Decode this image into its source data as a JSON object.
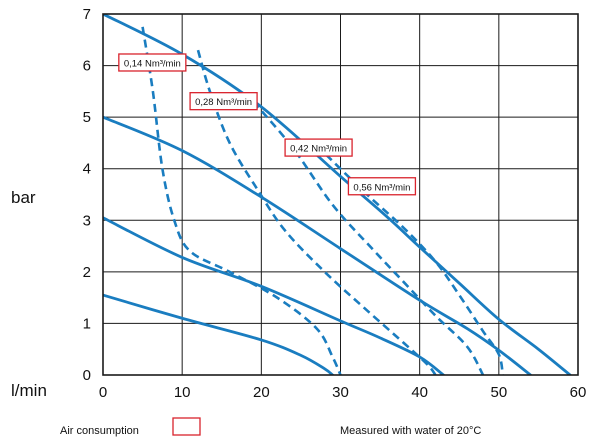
{
  "chart_data": {
    "type": "line",
    "title": "",
    "xlabel": "l/min",
    "ylabel": "bar",
    "xlim": [
      0,
      60
    ],
    "ylim": [
      0,
      7
    ],
    "x_ticks": [
      0,
      10,
      20,
      30,
      40,
      50,
      60
    ],
    "y_ticks": [
      0,
      1,
      2,
      3,
      4,
      5,
      6,
      7
    ],
    "grid": true,
    "line_color": "#1a7dc0",
    "grid_color": "#1a1a1a",
    "callout_border_color": "#d9232d",
    "pressure_curves": [
      {
        "style": "solid",
        "points": [
          [
            0,
            7.0
          ],
          [
            10,
            6.22
          ],
          [
            20,
            5.2
          ],
          [
            30,
            3.85
          ],
          [
            36,
            3.05
          ],
          [
            40,
            2.48
          ],
          [
            45,
            1.78
          ],
          [
            50,
            1.08
          ],
          [
            55,
            0.5
          ],
          [
            59,
            0.0
          ]
        ]
      },
      {
        "style": "solid",
        "points": [
          [
            0,
            5.0
          ],
          [
            10,
            4.35
          ],
          [
            20,
            3.45
          ],
          [
            30,
            2.45
          ],
          [
            40,
            1.45
          ],
          [
            46,
            0.9
          ],
          [
            50,
            0.48
          ],
          [
            54,
            0.0
          ]
        ]
      },
      {
        "style": "solid",
        "points": [
          [
            0,
            3.05
          ],
          [
            10,
            2.28
          ],
          [
            20,
            1.72
          ],
          [
            30,
            1.05
          ],
          [
            35,
            0.72
          ],
          [
            40,
            0.35
          ],
          [
            43,
            0.0
          ]
        ]
      },
      {
        "style": "solid",
        "points": [
          [
            0,
            1.55
          ],
          [
            10,
            1.1
          ],
          [
            20,
            0.68
          ],
          [
            25,
            0.38
          ],
          [
            28,
            0.12
          ],
          [
            29,
            0.0
          ]
        ]
      }
    ],
    "air_consumption_curves": [
      {
        "label": "0,14 Nm³/min",
        "style": "dashed",
        "points": [
          [
            5,
            6.75
          ],
          [
            6.3,
            5.5
          ],
          [
            7.5,
            4.0
          ],
          [
            9,
            3.0
          ],
          [
            11,
            2.4
          ],
          [
            16,
            2.0
          ],
          [
            22,
            1.5
          ],
          [
            27,
            0.9
          ],
          [
            29,
            0.35
          ],
          [
            30,
            0.0
          ]
        ]
      },
      {
        "label": "0,28 Nm³/min",
        "style": "dashed",
        "points": [
          [
            12,
            6.3
          ],
          [
            13.5,
            5.5
          ],
          [
            16,
            4.5
          ],
          [
            19.5,
            3.6
          ],
          [
            23,
            2.8
          ],
          [
            28,
            2.0
          ],
          [
            33,
            1.3
          ],
          [
            38,
            0.62
          ],
          [
            41,
            0.2
          ],
          [
            42,
            0.0
          ]
        ]
      },
      {
        "label": "0,42 Nm³/min",
        "style": "dashed",
        "points": [
          [
            19,
            5.3
          ],
          [
            24,
            4.4
          ],
          [
            29,
            3.3
          ],
          [
            34,
            2.45
          ],
          [
            38,
            1.8
          ],
          [
            42,
            1.15
          ],
          [
            46,
            0.55
          ],
          [
            48,
            0.0
          ]
        ]
      },
      {
        "label": "0,56 Nm³/min",
        "style": "dashed",
        "points": [
          [
            27,
            4.45
          ],
          [
            33,
            3.55
          ],
          [
            38,
            2.85
          ],
          [
            42,
            2.2
          ],
          [
            45,
            1.55
          ],
          [
            48,
            0.85
          ],
          [
            50,
            0.4
          ],
          [
            50.5,
            0.0
          ]
        ]
      }
    ],
    "callouts": [
      {
        "text": "0,14 Nm³/min",
        "x": 2,
        "y": 6.05
      },
      {
        "text": "0,28 Nm³/min",
        "x": 11,
        "y": 5.3
      },
      {
        "text": "0,42 Nm³/min",
        "x": 23,
        "y": 4.4
      },
      {
        "text": "0,56 Nm³/min",
        "x": 31,
        "y": 3.65
      }
    ]
  },
  "legend": {
    "air_consumption_label": "Air consumption",
    "measured_note": "Measured with water of 20°C"
  }
}
